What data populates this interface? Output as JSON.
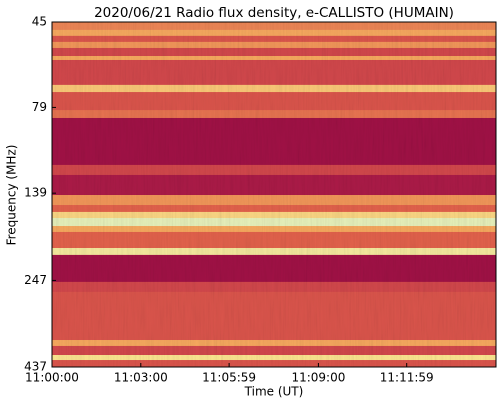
{
  "chart_data": {
    "type": "spectrogram",
    "title": "2020/06/21  Radio flux density, e-CALLISTO (HUMAIN)",
    "xlabel": "Time (UT)",
    "ylabel": "Frequency (MHz)",
    "xlim": [
      "11:00:00",
      "11:15:00"
    ],
    "xticks": [
      "11:00:00",
      "11:03:00",
      "11:05:59",
      "11:09:00",
      "11:11:59"
    ],
    "ylim": [
      45,
      437
    ],
    "yticks": [
      45,
      79,
      139,
      247,
      437
    ],
    "ylog": true,
    "yinvert": true,
    "band_edges": [
      45,
      47.4,
      49.3,
      51.3,
      53.4,
      56.3,
      57.8,
      68.1,
      71.4,
      80.4,
      84.7,
      115.4,
      123.3,
      140.7,
      150.3,
      157.3,
      163.7,
      172.6,
      179.5,
      199.5,
      208.8,
      249.4,
      266.3,
      365.8,
      380.4,
      403.8,
      417.4,
      437
    ],
    "intensity": [
      0.5,
      0.6,
      0.35,
      0.55,
      0.3,
      0.6,
      0.3,
      0.7,
      0.35,
      0.45,
      0.05,
      0.3,
      0.1,
      0.55,
      0.4,
      0.75,
      0.95,
      0.6,
      0.4,
      0.85,
      0.05,
      0.3,
      0.35,
      0.6,
      0.3,
      0.8,
      0.35
    ],
    "colormap": [
      "#950843",
      "#c02c4a",
      "#e2614b",
      "#f6a85e",
      "#fbe58f",
      "#dff4c8"
    ]
  }
}
